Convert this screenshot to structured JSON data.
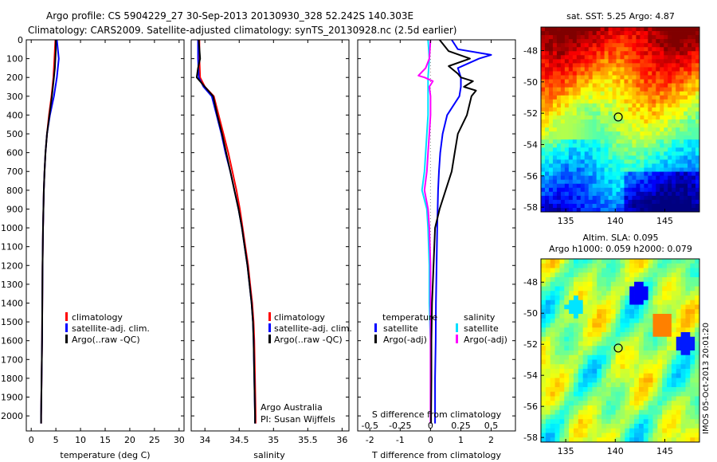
{
  "title": {
    "line1": "Argo profile: CS 5904229_27 30-Sep-2013 20130930_328 52.242S 140.303E",
    "line2": "Climatology: CARS2009. Satellite-adjusted climatology: synTS_20130928.nc (2.5d earlier)"
  },
  "colors": {
    "climatology": "#ff0000",
    "satellite": "#0000ff",
    "argo": "#000000",
    "sdiff_satellite": "#00e0ff",
    "sdiff_argo": "#ff00ff",
    "float_marker": "#000000"
  },
  "chart_data": [
    {
      "type": "line",
      "panel": "temperature",
      "xlabel": "temperature (deg C)",
      "ylabel": "",
      "xlim": [
        -1,
        31
      ],
      "ylim": [
        2080,
        0
      ],
      "xticks": [
        0,
        5,
        10,
        15,
        20,
        25,
        30
      ],
      "yticks": [
        0,
        100,
        200,
        300,
        400,
        500,
        600,
        700,
        800,
        900,
        1000,
        1100,
        1200,
        1300,
        1400,
        1500,
        1600,
        1700,
        1800,
        1900,
        2000
      ],
      "legend": [
        "climatology",
        "satellite-adj. clim.",
        "Argo(..raw -QC)"
      ],
      "legend_loc": "lower-right",
      "series": [
        {
          "name": "climatology",
          "depth": [
            0,
            100,
            200,
            300,
            400,
            500,
            600,
            700,
            800,
            1000,
            1200,
            1400,
            1600,
            1800,
            2000,
            2040
          ],
          "values": [
            4.9,
            4.7,
            4.5,
            4.1,
            3.6,
            3.2,
            2.9,
            2.7,
            2.55,
            2.4,
            2.3,
            2.25,
            2.2,
            2.1,
            2.0,
            2.0
          ]
        },
        {
          "name": "satellite-adj. clim.",
          "depth": [
            0,
            50,
            100,
            150,
            200,
            300,
            400,
            500,
            600,
            700,
            800,
            1000,
            1200,
            1400,
            1600,
            1800,
            2000,
            2040
          ],
          "values": [
            5.2,
            5.4,
            5.6,
            5.4,
            5.2,
            4.6,
            3.8,
            3.2,
            2.9,
            2.7,
            2.55,
            2.4,
            2.3,
            2.25,
            2.2,
            2.1,
            2.0,
            2.0
          ]
        },
        {
          "name": "Argo(..raw -QC)",
          "depth": [
            0,
            50,
            100,
            150,
            200,
            300,
            400,
            500,
            600,
            700,
            800,
            1000,
            1200,
            1400,
            1600,
            1800,
            2000,
            2040
          ],
          "values": [
            5.0,
            5.0,
            4.9,
            4.8,
            4.6,
            4.2,
            3.7,
            3.2,
            2.9,
            2.7,
            2.55,
            2.4,
            2.3,
            2.25,
            2.2,
            2.1,
            2.0,
            2.0
          ]
        }
      ]
    },
    {
      "type": "line",
      "panel": "salinity",
      "xlabel": "salinity",
      "xlim": [
        33.8,
        36.1
      ],
      "ylim": [
        2080,
        0
      ],
      "xticks": [
        34,
        34.5,
        35,
        35.5,
        36
      ],
      "legend": [
        "climatology",
        "satellite-adj. clim.",
        "Argo(..raw -QC)"
      ],
      "legend_loc": "lower-right",
      "annotation": [
        "Argo Australia",
        "PI: Susan Wijffels"
      ],
      "series": [
        {
          "name": "climatology",
          "depth": [
            0,
            100,
            200,
            250,
            300,
            400,
            500,
            600,
            700,
            800,
            900,
            1000,
            1100,
            1200,
            1300,
            1400,
            1500,
            1600,
            1800,
            2000,
            2040
          ],
          "values": [
            33.92,
            33.92,
            33.93,
            34.0,
            34.13,
            34.2,
            34.27,
            34.34,
            34.4,
            34.46,
            34.51,
            34.55,
            34.59,
            34.63,
            34.66,
            34.69,
            34.71,
            34.72,
            34.73,
            34.74,
            34.74
          ]
        },
        {
          "name": "satellite-adj. clim.",
          "depth": [
            0,
            100,
            200,
            250,
            300,
            400,
            500,
            600,
            700,
            800,
            900,
            1000,
            1100,
            1200,
            1300,
            1400,
            1500,
            1600,
            1800,
            2000,
            2040
          ],
          "values": [
            33.9,
            33.9,
            33.91,
            33.98,
            34.1,
            34.17,
            34.24,
            34.3,
            34.37,
            34.43,
            34.49,
            34.54,
            34.58,
            34.62,
            34.65,
            34.68,
            34.7,
            34.71,
            34.72,
            34.73,
            34.73
          ]
        },
        {
          "name": "Argo(..raw -QC)",
          "depth": [
            0,
            100,
            150,
            200,
            250,
            300,
            400,
            500,
            600,
            700,
            800,
            900,
            1000,
            1100,
            1200,
            1300,
            1400,
            1500,
            1600,
            1800,
            2000,
            2040
          ],
          "values": [
            33.91,
            33.93,
            33.9,
            33.88,
            34.0,
            34.12,
            34.18,
            34.25,
            34.31,
            34.37,
            34.43,
            34.49,
            34.54,
            34.58,
            34.62,
            34.65,
            34.68,
            34.7,
            34.71,
            34.72,
            34.73,
            34.73
          ]
        }
      ]
    },
    {
      "type": "line",
      "panel": "difference",
      "xlabel": "T difference from climatology",
      "x2label": "S difference from climatology",
      "xlim": [
        -2.4,
        2.8
      ],
      "x2lim": [
        -0.6,
        0.7
      ],
      "ylim": [
        2080,
        0
      ],
      "xticks": [
        -2,
        -1,
        0,
        1,
        2
      ],
      "x2ticks": [
        -0.5,
        -0.25,
        0,
        0.25,
        0.5
      ],
      "legend_headers": [
        "temperature",
        "salinity"
      ],
      "legend": [
        "satellite",
        "Argo(-adj)",
        "satellite",
        "Argo(-adj)"
      ],
      "series": [
        {
          "name": "satellite",
          "variable": "temperature",
          "axis": "x",
          "depth": [
            0,
            50,
            80,
            100,
            150,
            200,
            250,
            300,
            400,
            500,
            600,
            700,
            800,
            1000,
            1200,
            1400,
            1600,
            1800,
            2000,
            2040
          ],
          "values": [
            0.7,
            0.9,
            2.0,
            1.6,
            0.9,
            1.0,
            1.0,
            0.95,
            0.55,
            0.4,
            0.32,
            0.28,
            0.25,
            0.22,
            0.2,
            0.18,
            0.17,
            0.15,
            0.15,
            0.15
          ]
        },
        {
          "name": "Argo(-adj)",
          "variable": "temperature",
          "axis": "x",
          "depth": [
            0,
            60,
            100,
            140,
            180,
            200,
            220,
            250,
            270,
            300,
            400,
            500,
            600,
            700,
            800,
            900,
            1000,
            1200,
            1400,
            1600,
            1800,
            2000,
            2040
          ],
          "values": [
            0.3,
            0.6,
            1.3,
            0.6,
            0.9,
            1.0,
            1.4,
            1.1,
            1.5,
            1.35,
            1.2,
            0.9,
            0.8,
            0.7,
            0.5,
            0.3,
            0.15,
            0.1,
            0.05,
            0.03,
            0.03,
            0.02,
            0.02
          ]
        },
        {
          "name": "satellite",
          "variable": "salinity",
          "axis": "x2",
          "depth": [
            0,
            100,
            200,
            300,
            400,
            500,
            600,
            700,
            800,
            900,
            1000,
            1200,
            1400,
            1600,
            1800,
            2000,
            2040
          ],
          "values": [
            -0.02,
            -0.01,
            -0.02,
            -0.02,
            -0.02,
            -0.03,
            -0.04,
            -0.05,
            -0.07,
            -0.03,
            -0.02,
            -0.01,
            -0.01,
            0.0,
            0.0,
            0.0,
            0.0
          ]
        },
        {
          "name": "Argo(-adj)",
          "variable": "salinity",
          "axis": "x2",
          "depth": [
            0,
            100,
            150,
            190,
            200,
            220,
            250,
            300,
            400,
            500,
            600,
            700,
            800,
            900,
            1000,
            1200,
            1400,
            1600,
            1800,
            2000,
            2040
          ],
          "values": [
            0.0,
            -0.01,
            -0.04,
            -0.1,
            -0.05,
            0.02,
            -0.01,
            0.0,
            0.0,
            -0.01,
            -0.02,
            -0.03,
            -0.05,
            -0.02,
            -0.01,
            0.0,
            0.0,
            0.0,
            0.0,
            0.0,
            0.0
          ]
        }
      ]
    },
    {
      "type": "heatmap",
      "panel": "sst_map",
      "title": "sat. SST: 5.25 Argo: 4.87",
      "xlim": [
        132.5,
        148.5
      ],
      "ylim": [
        -58.3,
        -46.5
      ],
      "xticks": [
        135,
        140,
        145
      ],
      "yticks": [
        -48,
        -50,
        -52,
        -54,
        -56,
        -58
      ],
      "float_position": {
        "lon": 140.303,
        "lat": -52.242
      }
    },
    {
      "type": "heatmap",
      "panel": "sla_map",
      "title": [
        "Altim. SLA: 0.095",
        "Argo h1000: 0.059 h2000: 0.079"
      ],
      "xlim": [
        132.5,
        148.5
      ],
      "ylim": [
        -58.3,
        -46.5
      ],
      "xticks": [
        135,
        140,
        145
      ],
      "yticks": [
        -48,
        -50,
        -52,
        -54,
        -56,
        -58
      ],
      "float_position": {
        "lon": 140.303,
        "lat": -52.242
      }
    }
  ],
  "watermark": "IMOS 05-Oct-2013 20:01:20"
}
